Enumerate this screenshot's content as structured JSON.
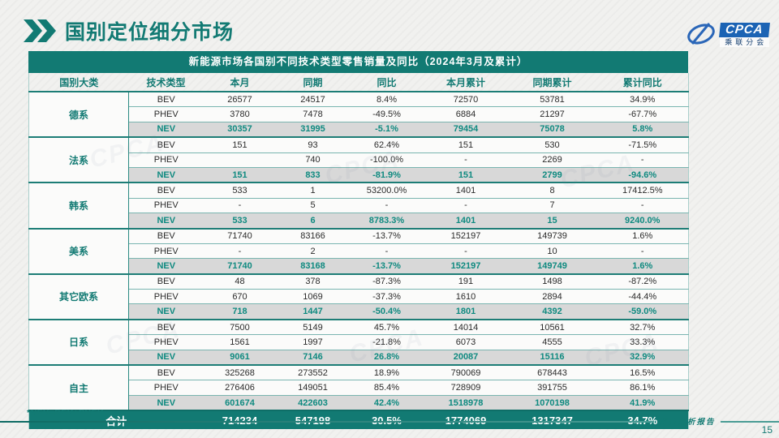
{
  "page": {
    "title": "国别定位细分市场",
    "footnote": "*NEV=BEV+PHEV",
    "footer_label": "深度分析报告",
    "page_number": "15",
    "watermark": "CPCA"
  },
  "logo": {
    "acronym": "CPCA",
    "cn_name": "乘联分会"
  },
  "colors": {
    "accent_teal": "#127a73",
    "nev_text_teal": "#0f8a80",
    "nev_row_gray": "#d8d8d8",
    "logo_blue": "#1b63b4"
  },
  "table": {
    "title": "新能源市场各国别不同技术类型零售销量及同比（2024年3月及累计）",
    "columns": [
      "国别大类",
      "技术类型",
      "本月",
      "同期",
      "同比",
      "本月累计",
      "同期累计",
      "累计同比"
    ],
    "groups": [
      {
        "name": "德系",
        "rows": [
          {
            "type": "BEV",
            "cur": "26577",
            "prev": "24517",
            "yoy": "8.4%",
            "cum": "72570",
            "prev_cum": "53781",
            "cum_yoy": "34.9%"
          },
          {
            "type": "PHEV",
            "cur": "3780",
            "prev": "7478",
            "yoy": "-49.5%",
            "cum": "6884",
            "prev_cum": "21297",
            "cum_yoy": "-67.7%"
          },
          {
            "type": "NEV",
            "cur": "30357",
            "prev": "31995",
            "yoy": "-5.1%",
            "cum": "79454",
            "prev_cum": "75078",
            "cum_yoy": "5.8%"
          }
        ]
      },
      {
        "name": "法系",
        "rows": [
          {
            "type": "BEV",
            "cur": "151",
            "prev": "93",
            "yoy": "62.4%",
            "cum": "151",
            "prev_cum": "530",
            "cum_yoy": "-71.5%"
          },
          {
            "type": "PHEV",
            "cur": "",
            "prev": "740",
            "yoy": "-100.0%",
            "cum": "-",
            "prev_cum": "2269",
            "cum_yoy": "-"
          },
          {
            "type": "NEV",
            "cur": "151",
            "prev": "833",
            "yoy": "-81.9%",
            "cum": "151",
            "prev_cum": "2799",
            "cum_yoy": "-94.6%"
          }
        ]
      },
      {
        "name": "韩系",
        "rows": [
          {
            "type": "BEV",
            "cur": "533",
            "prev": "1",
            "yoy": "53200.0%",
            "cum": "1401",
            "prev_cum": "8",
            "cum_yoy": "17412.5%"
          },
          {
            "type": "PHEV",
            "cur": "-",
            "prev": "5",
            "yoy": "-",
            "cum": "-",
            "prev_cum": "7",
            "cum_yoy": "-"
          },
          {
            "type": "NEV",
            "cur": "533",
            "prev": "6",
            "yoy": "8783.3%",
            "cum": "1401",
            "prev_cum": "15",
            "cum_yoy": "9240.0%"
          }
        ]
      },
      {
        "name": "美系",
        "rows": [
          {
            "type": "BEV",
            "cur": "71740",
            "prev": "83166",
            "yoy": "-13.7%",
            "cum": "152197",
            "prev_cum": "149739",
            "cum_yoy": "1.6%"
          },
          {
            "type": "PHEV",
            "cur": "-",
            "prev": "2",
            "yoy": "-",
            "cum": "-",
            "prev_cum": "10",
            "cum_yoy": "-"
          },
          {
            "type": "NEV",
            "cur": "71740",
            "prev": "83168",
            "yoy": "-13.7%",
            "cum": "152197",
            "prev_cum": "149749",
            "cum_yoy": "1.6%"
          }
        ]
      },
      {
        "name": "其它欧系",
        "rows": [
          {
            "type": "BEV",
            "cur": "48",
            "prev": "378",
            "yoy": "-87.3%",
            "cum": "191",
            "prev_cum": "1498",
            "cum_yoy": "-87.2%"
          },
          {
            "type": "PHEV",
            "cur": "670",
            "prev": "1069",
            "yoy": "-37.3%",
            "cum": "1610",
            "prev_cum": "2894",
            "cum_yoy": "-44.4%"
          },
          {
            "type": "NEV",
            "cur": "718",
            "prev": "1447",
            "yoy": "-50.4%",
            "cum": "1801",
            "prev_cum": "4392",
            "cum_yoy": "-59.0%"
          }
        ]
      },
      {
        "name": "日系",
        "rows": [
          {
            "type": "BEV",
            "cur": "7500",
            "prev": "5149",
            "yoy": "45.7%",
            "cum": "14014",
            "prev_cum": "10561",
            "cum_yoy": "32.7%"
          },
          {
            "type": "PHEV",
            "cur": "1561",
            "prev": "1997",
            "yoy": "-21.8%",
            "cum": "6073",
            "prev_cum": "4555",
            "cum_yoy": "33.3%"
          },
          {
            "type": "NEV",
            "cur": "9061",
            "prev": "7146",
            "yoy": "26.8%",
            "cum": "20087",
            "prev_cum": "15116",
            "cum_yoy": "32.9%"
          }
        ]
      },
      {
        "name": "自主",
        "rows": [
          {
            "type": "BEV",
            "cur": "325268",
            "prev": "273552",
            "yoy": "18.9%",
            "cum": "790069",
            "prev_cum": "678443",
            "cum_yoy": "16.5%"
          },
          {
            "type": "PHEV",
            "cur": "276406",
            "prev": "149051",
            "yoy": "85.4%",
            "cum": "728909",
            "prev_cum": "391755",
            "cum_yoy": "86.1%"
          },
          {
            "type": "NEV",
            "cur": "601674",
            "prev": "422603",
            "yoy": "42.4%",
            "cum": "1518978",
            "prev_cum": "1070198",
            "cum_yoy": "41.9%"
          }
        ]
      }
    ],
    "total": {
      "label": "合计",
      "cur": "714234",
      "prev": "547198",
      "yoy": "30.5%",
      "cum": "1774069",
      "prev_cum": "1317347",
      "cum_yoy": "34.7%"
    }
  }
}
